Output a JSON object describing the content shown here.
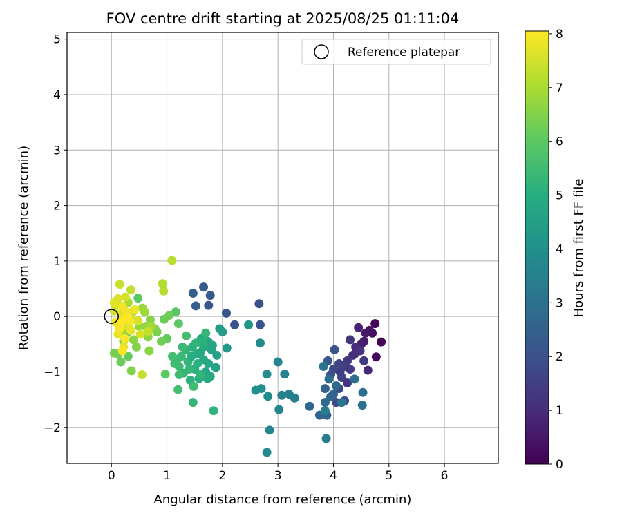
{
  "chart_data": {
    "type": "scatter",
    "title": "FOV centre drift starting at 2025/08/25 01:11:04",
    "xlabel": "Angular distance from reference (arcmin)",
    "ylabel": "Rotation from reference (arcmin)",
    "xlim": [
      -0.8,
      6.97
    ],
    "ylim": [
      -2.65,
      5.12
    ],
    "x_ticks": [
      0,
      1,
      2,
      3,
      4,
      5,
      6
    ],
    "y_ticks": [
      -2,
      -1,
      0,
      1,
      2,
      3,
      4,
      5
    ],
    "grid": true,
    "legend": {
      "position": "top-right",
      "entries": [
        "Reference platepar"
      ]
    },
    "reference_point": {
      "x": 0,
      "y": 0
    },
    "colorbar": {
      "label": "Hours from first FF file",
      "range": [
        0,
        8.05
      ],
      "ticks": [
        0,
        1,
        2,
        3,
        4,
        5,
        6,
        7,
        8
      ],
      "colormap": "viridis"
    },
    "points": [
      [
        4.75,
        -0.13,
        0.05
      ],
      [
        4.86,
        -0.46,
        0.1
      ],
      [
        4.77,
        -0.73,
        0.2
      ],
      [
        4.7,
        -0.3,
        0.3
      ],
      [
        4.65,
        -0.25,
        0.4
      ],
      [
        4.58,
        -0.3,
        0.5
      ],
      [
        4.55,
        -0.45,
        0.6
      ],
      [
        4.5,
        -0.5,
        0.7
      ],
      [
        4.45,
        -0.2,
        0.8
      ],
      [
        4.62,
        -0.97,
        0.9
      ],
      [
        4.4,
        -0.55,
        1.0
      ],
      [
        4.35,
        -0.7,
        1.1
      ],
      [
        4.3,
        -0.42,
        1.2
      ],
      [
        4.25,
        -0.8,
        1.3
      ],
      [
        4.55,
        -0.8,
        1.4
      ],
      [
        4.2,
        -0.9,
        1.5
      ],
      [
        4.15,
        -1.1,
        1.6
      ],
      [
        4.1,
        -1.3,
        1.7
      ],
      [
        4.05,
        -1.55,
        1.8
      ],
      [
        4.2,
        -1.52,
        1.9
      ],
      [
        4.3,
        -0.95,
        1.4
      ],
      [
        4.48,
        -0.62,
        1.2
      ],
      [
        4.1,
        -0.85,
        1.6
      ],
      [
        4.0,
        -0.95,
        1.8
      ],
      [
        3.95,
        -1.05,
        2.0
      ],
      [
        4.02,
        -0.6,
        2.1
      ],
      [
        3.9,
        -0.8,
        2.2
      ],
      [
        4.12,
        -1.0,
        1.5
      ],
      [
        4.25,
        -1.2,
        1.3
      ],
      [
        4.38,
        -0.68,
        1.1
      ],
      [
        2.66,
        0.23,
        2.0
      ],
      [
        2.68,
        -0.15,
        2.05
      ],
      [
        2.22,
        -0.15,
        2.1
      ],
      [
        2.07,
        0.06,
        2.15
      ],
      [
        1.75,
        0.2,
        2.2
      ],
      [
        1.78,
        0.38,
        2.25
      ],
      [
        1.66,
        0.53,
        2.3
      ],
      [
        1.52,
        0.19,
        2.35
      ],
      [
        1.47,
        0.42,
        2.4
      ],
      [
        3.85,
        -1.3,
        2.5
      ],
      [
        3.88,
        -1.78,
        2.55
      ],
      [
        3.75,
        -1.78,
        2.6
      ],
      [
        3.57,
        -1.62,
        2.65
      ],
      [
        3.85,
        -1.55,
        2.7
      ],
      [
        3.95,
        -1.45,
        2.75
      ],
      [
        4.05,
        -1.25,
        2.8
      ],
      [
        3.92,
        -1.13,
        2.85
      ],
      [
        4.38,
        -1.13,
        2.9
      ],
      [
        4.53,
        -1.37,
        2.95
      ],
      [
        4.52,
        -1.6,
        3.0
      ],
      [
        4.15,
        -1.55,
        3.05
      ],
      [
        3.82,
        -0.9,
        3.1
      ],
      [
        4.0,
        -1.4,
        2.6
      ],
      [
        3.87,
        -2.2,
        3.3
      ],
      [
        3.85,
        -1.7,
        3.35
      ],
      [
        3.3,
        -1.47,
        3.4
      ],
      [
        3.2,
        -1.4,
        3.45
      ],
      [
        3.07,
        -1.42,
        3.5
      ],
      [
        3.12,
        -1.04,
        3.55
      ],
      [
        3.0,
        -0.82,
        3.6
      ],
      [
        3.02,
        -1.68,
        3.65
      ],
      [
        2.85,
        -2.05,
        3.7
      ],
      [
        2.8,
        -2.45,
        3.75
      ],
      [
        2.68,
        -0.48,
        3.8
      ],
      [
        2.8,
        -1.04,
        3.85
      ],
      [
        2.82,
        -1.44,
        3.9
      ],
      [
        2.7,
        -1.3,
        3.95
      ],
      [
        2.6,
        -1.33,
        4.0
      ],
      [
        2.47,
        -0.15,
        4.2
      ],
      [
        2.08,
        -0.57,
        4.3
      ],
      [
        2.0,
        -0.28,
        4.4
      ],
      [
        1.95,
        -0.22,
        4.5
      ],
      [
        1.88,
        -0.92,
        4.6
      ],
      [
        1.8,
        -0.6,
        4.65
      ],
      [
        1.78,
        -1.08,
        4.7
      ],
      [
        1.74,
        -0.45,
        4.75
      ],
      [
        1.7,
        -1.0,
        4.8
      ],
      [
        1.66,
        -0.78,
        4.85
      ],
      [
        1.62,
        -0.4,
        4.9
      ],
      [
        1.58,
        -1.12,
        4.95
      ],
      [
        1.54,
        -0.68,
        5.0
      ],
      [
        1.5,
        -0.95,
        5.05
      ],
      [
        1.46,
        -0.55,
        5.1
      ],
      [
        1.42,
        -1.15,
        5.15
      ],
      [
        1.38,
        -0.82,
        5.2
      ],
      [
        1.34,
        -0.6,
        5.25
      ],
      [
        1.3,
        -1.02,
        5.3
      ],
      [
        1.26,
        -0.72,
        5.35
      ],
      [
        1.22,
        -0.9,
        5.4
      ],
      [
        1.18,
        -0.78,
        5.45
      ],
      [
        1.14,
        -0.85,
        5.5
      ],
      [
        1.1,
        -0.72,
        5.55
      ],
      [
        1.35,
        -0.35,
        5.6
      ],
      [
        1.48,
        -1.26,
        5.5
      ],
      [
        1.47,
        -1.55,
        5.3
      ],
      [
        1.84,
        -1.7,
        5.2
      ],
      [
        1.73,
        -1.12,
        4.9
      ],
      [
        1.66,
        -0.55,
        5.0
      ],
      [
        1.82,
        -0.52,
        4.7
      ],
      [
        1.9,
        -0.7,
        4.6
      ],
      [
        1.55,
        -0.85,
        5.1
      ],
      [
        1.6,
        -1.05,
        5.2
      ],
      [
        1.7,
        -0.3,
        5.3
      ],
      [
        1.28,
        -0.55,
        5.4
      ],
      [
        1.22,
        -1.05,
        5.5
      ],
      [
        1.2,
        -1.32,
        5.6
      ],
      [
        1.44,
        -0.72,
        5.0
      ],
      [
        1.6,
        -0.65,
        4.9
      ],
      [
        1.75,
        -0.85,
        4.8
      ],
      [
        1.65,
        -0.45,
        5.1
      ],
      [
        1.52,
        -0.48,
        5.2
      ],
      [
        1.4,
        -0.95,
        5.3
      ],
      [
        1.16,
        0.08,
        5.9
      ],
      [
        1.21,
        -0.13,
        5.95
      ],
      [
        0.97,
        -1.04,
        6.0
      ],
      [
        1.0,
        -0.4,
        6.1
      ],
      [
        0.95,
        -0.05,
        6.2
      ],
      [
        0.9,
        -0.45,
        6.3
      ],
      [
        0.82,
        -0.28,
        6.4
      ],
      [
        0.78,
        -0.22,
        6.5
      ],
      [
        0.7,
        -0.06,
        6.55
      ],
      [
        0.68,
        -0.62,
        6.6
      ],
      [
        0.66,
        -0.37,
        6.65
      ],
      [
        0.62,
        -0.18,
        6.7
      ],
      [
        1.04,
        0.02,
        6.25
      ],
      [
        0.48,
        0.33,
        6.0
      ],
      [
        0.3,
        -0.72,
        6.1
      ],
      [
        0.17,
        -0.82,
        6.2
      ],
      [
        0.12,
        -0.68,
        6.3
      ],
      [
        0.05,
        -0.66,
        6.35
      ],
      [
        0.22,
        -0.44,
        6.4
      ],
      [
        0.28,
        -0.3,
        6.45
      ],
      [
        0.36,
        -0.98,
        6.5
      ],
      [
        0.4,
        -0.42,
        6.6
      ],
      [
        0.5,
        -0.18,
        6.7
      ],
      [
        0.56,
        0.15,
        6.8
      ],
      [
        0.6,
        0.08,
        6.85
      ],
      [
        0.72,
        -0.18,
        6.9
      ],
      [
        0.4,
        0.1,
        6.9
      ],
      [
        0.45,
        -0.55,
        6.5
      ],
      [
        0.3,
        0.25,
        6.95
      ],
      [
        0.2,
        -0.25,
        6.8
      ],
      [
        0.92,
        0.59,
        7.1
      ],
      [
        0.94,
        0.46,
        7.15
      ],
      [
        1.09,
        1.01,
        7.2
      ],
      [
        0.66,
        -0.27,
        7.3
      ],
      [
        0.55,
        -1.05,
        7.35
      ],
      [
        0.35,
        0.48,
        7.3
      ],
      [
        0.15,
        0.58,
        7.4
      ],
      [
        0.1,
        0.22,
        7.45
      ],
      [
        0.05,
        0.1,
        7.5
      ],
      [
        0.25,
        0.35,
        7.55
      ],
      [
        0.48,
        -0.08,
        7.55
      ],
      [
        0.52,
        -0.32,
        7.6
      ],
      [
        0.4,
        -0.05,
        7.6
      ],
      [
        0.3,
        -0.18,
        7.65
      ],
      [
        0.18,
        0.05,
        7.7
      ],
      [
        0.12,
        -0.32,
        7.75
      ],
      [
        0.22,
        -0.55,
        7.8
      ],
      [
        0.35,
        -0.25,
        7.8
      ],
      [
        0.08,
        -0.1,
        7.85
      ],
      [
        0.2,
        0.18,
        7.9
      ],
      [
        0.27,
        0.08,
        7.9
      ],
      [
        0.33,
        -0.08,
        7.95
      ],
      [
        0.15,
        -0.22,
        7.95
      ],
      [
        0.24,
        -0.4,
        8.0
      ],
      [
        0.2,
        -0.62,
        8.0
      ],
      [
        0.42,
        0.12,
        7.85
      ],
      [
        0.05,
        0.25,
        7.7
      ],
      [
        0.12,
        0.32,
        7.6
      ],
      [
        0.28,
        -0.02,
        8.05
      ],
      [
        0.18,
        -0.08,
        8.05
      ]
    ]
  }
}
